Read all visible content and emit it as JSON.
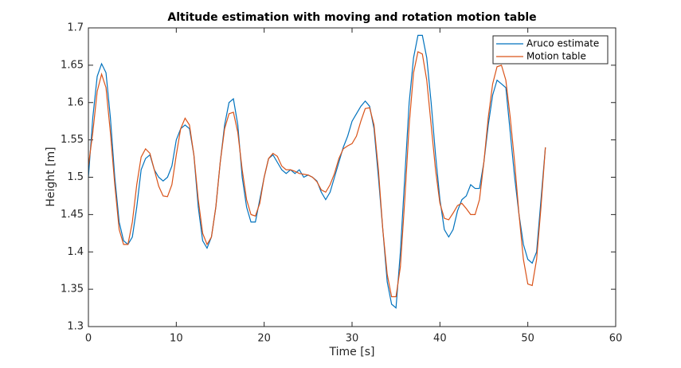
{
  "chart_data": {
    "type": "line",
    "title": "Altitude estimation with moving and rotation motion table",
    "x_label": "Time [s]",
    "y_label": "Height [m]",
    "xlim": [
      0,
      60
    ],
    "xticks": [
      0,
      10,
      20,
      30,
      40,
      50,
      60
    ],
    "ylim": [
      1.3,
      1.7
    ],
    "yticks": [
      1.3,
      1.35,
      1.4,
      1.45,
      1.5,
      1.55,
      1.6,
      1.65,
      1.7
    ],
    "legend_position": "upper-right",
    "x": [
      0,
      0.5,
      1,
      1.5,
      2,
      2.5,
      3,
      3.5,
      4,
      4.5,
      5,
      5.5,
      6,
      6.5,
      7,
      7.5,
      8,
      8.5,
      9,
      9.5,
      10,
      10.5,
      11,
      11.5,
      12,
      12.5,
      13,
      13.5,
      14,
      14.5,
      15,
      15.5,
      16,
      16.5,
      17,
      17.5,
      18,
      18.5,
      19,
      19.5,
      20,
      20.5,
      21,
      21.5,
      22,
      22.5,
      23,
      23.5,
      24,
      24.5,
      25,
      25.5,
      26,
      26.5,
      27,
      27.5,
      28,
      28.5,
      29,
      29.5,
      30,
      30.5,
      31,
      31.5,
      32,
      32.5,
      33,
      33.5,
      34,
      34.5,
      35,
      35.5,
      36,
      36.5,
      37,
      37.5,
      38,
      38.5,
      39,
      39.5,
      40,
      40.5,
      41,
      41.5,
      42,
      42.5,
      43,
      43.5,
      44,
      44.5,
      45,
      45.5,
      46,
      46.5,
      47,
      47.5,
      48,
      48.5,
      49,
      49.5,
      50,
      50.5,
      51,
      51.5,
      52
    ],
    "series": [
      {
        "name": "Aruco estimate",
        "color": "#0072bd",
        "values": [
          1.5,
          1.58,
          1.635,
          1.652,
          1.64,
          1.58,
          1.5,
          1.44,
          1.415,
          1.41,
          1.42,
          1.46,
          1.51,
          1.525,
          1.53,
          1.51,
          1.5,
          1.495,
          1.5,
          1.515,
          1.55,
          1.565,
          1.57,
          1.565,
          1.53,
          1.46,
          1.415,
          1.405,
          1.42,
          1.46,
          1.52,
          1.57,
          1.6,
          1.605,
          1.57,
          1.5,
          1.46,
          1.44,
          1.44,
          1.47,
          1.5,
          1.525,
          1.53,
          1.52,
          1.51,
          1.505,
          1.51,
          1.505,
          1.51,
          1.5,
          1.503,
          1.5,
          1.495,
          1.48,
          1.47,
          1.48,
          1.5,
          1.52,
          1.54,
          1.555,
          1.575,
          1.585,
          1.595,
          1.602,
          1.595,
          1.565,
          1.5,
          1.43,
          1.36,
          1.33,
          1.325,
          1.4,
          1.5,
          1.6,
          1.66,
          1.69,
          1.69,
          1.66,
          1.6,
          1.53,
          1.47,
          1.43,
          1.42,
          1.43,
          1.455,
          1.47,
          1.475,
          1.49,
          1.485,
          1.485,
          1.52,
          1.57,
          1.61,
          1.63,
          1.625,
          1.62,
          1.56,
          1.5,
          1.45,
          1.41,
          1.39,
          1.385,
          1.4,
          1.47,
          1.54
        ]
      },
      {
        "name": "Motion table",
        "color": "#d95319",
        "values": [
          1.515,
          1.56,
          1.615,
          1.638,
          1.62,
          1.56,
          1.49,
          1.43,
          1.41,
          1.41,
          1.44,
          1.49,
          1.527,
          1.538,
          1.532,
          1.51,
          1.488,
          1.475,
          1.474,
          1.49,
          1.53,
          1.565,
          1.579,
          1.57,
          1.53,
          1.47,
          1.425,
          1.41,
          1.42,
          1.46,
          1.52,
          1.565,
          1.585,
          1.587,
          1.56,
          1.51,
          1.47,
          1.45,
          1.448,
          1.465,
          1.5,
          1.525,
          1.532,
          1.528,
          1.515,
          1.51,
          1.51,
          1.508,
          1.505,
          1.504,
          1.503,
          1.5,
          1.494,
          1.483,
          1.48,
          1.49,
          1.505,
          1.525,
          1.538,
          1.542,
          1.545,
          1.555,
          1.575,
          1.592,
          1.593,
          1.57,
          1.51,
          1.43,
          1.37,
          1.34,
          1.34,
          1.38,
          1.47,
          1.57,
          1.64,
          1.668,
          1.665,
          1.63,
          1.57,
          1.51,
          1.465,
          1.445,
          1.443,
          1.452,
          1.462,
          1.465,
          1.458,
          1.45,
          1.45,
          1.47,
          1.52,
          1.58,
          1.625,
          1.648,
          1.65,
          1.63,
          1.58,
          1.52,
          1.45,
          1.39,
          1.357,
          1.355,
          1.39,
          1.46,
          1.54
        ]
      }
    ]
  }
}
